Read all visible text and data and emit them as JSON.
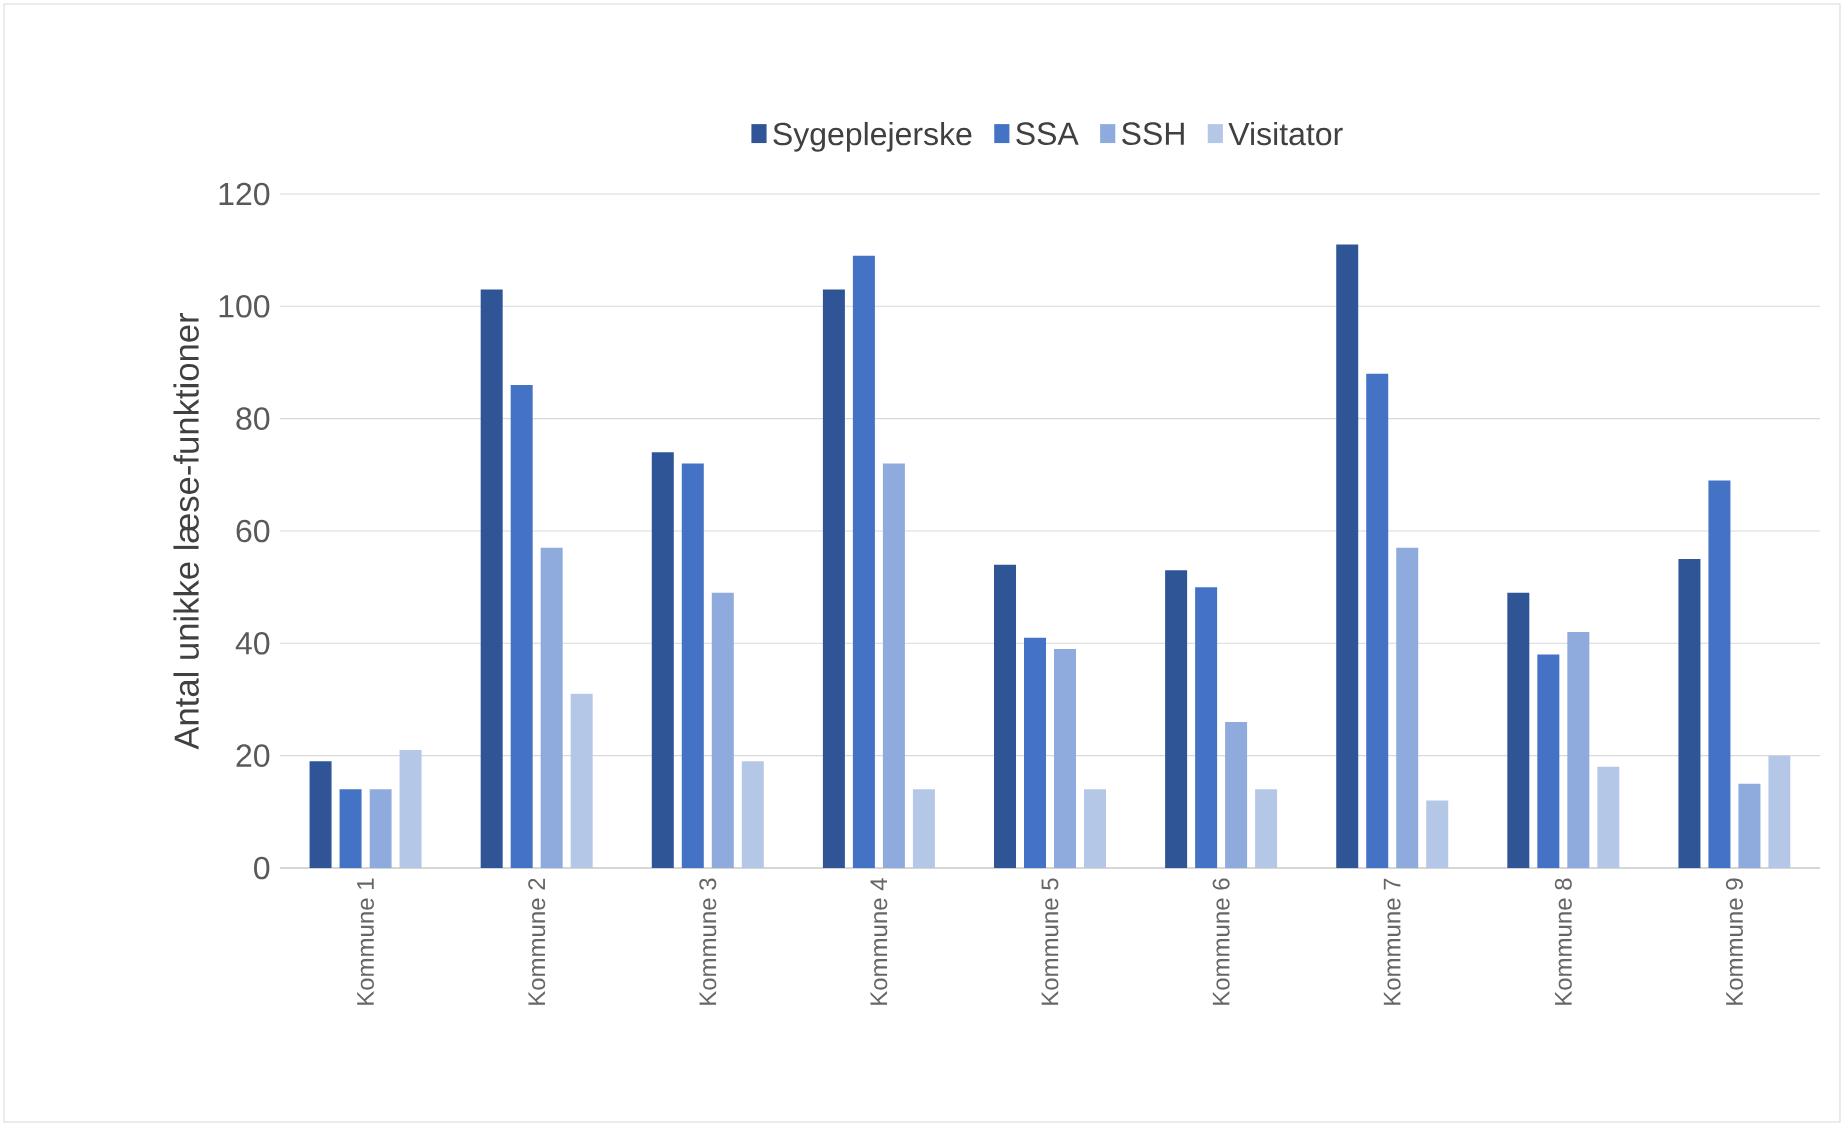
{
  "chart_data": {
    "type": "bar",
    "ylabel": "Antal unikke læse-funktioner",
    "categories": [
      "Kommune 1",
      "Kommune 2",
      "Kommune 3",
      "Kommune 4",
      "Kommune 5",
      "Kommune 6",
      "Kommune 7",
      "Kommune 8",
      "Kommune 9"
    ],
    "series": [
      {
        "name": "Sygeplejerske",
        "color": "#2f5597",
        "values": [
          19,
          103,
          74,
          103,
          54,
          53,
          111,
          49,
          55
        ]
      },
      {
        "name": "SSA",
        "color": "#4472c4",
        "values": [
          14,
          86,
          72,
          109,
          41,
          50,
          88,
          38,
          69
        ]
      },
      {
        "name": "SSH",
        "color": "#8faadc",
        "values": [
          14,
          57,
          49,
          72,
          39,
          26,
          57,
          42,
          15
        ]
      },
      {
        "name": "Visitator",
        "color": "#b4c7e7",
        "values": [
          21,
          31,
          19,
          14,
          14,
          14,
          12,
          18,
          20
        ]
      }
    ],
    "ylim": [
      0,
      120
    ],
    "yticks": [
      0,
      20,
      40,
      60,
      80,
      100,
      120
    ],
    "grid": "y",
    "legend": "top"
  }
}
